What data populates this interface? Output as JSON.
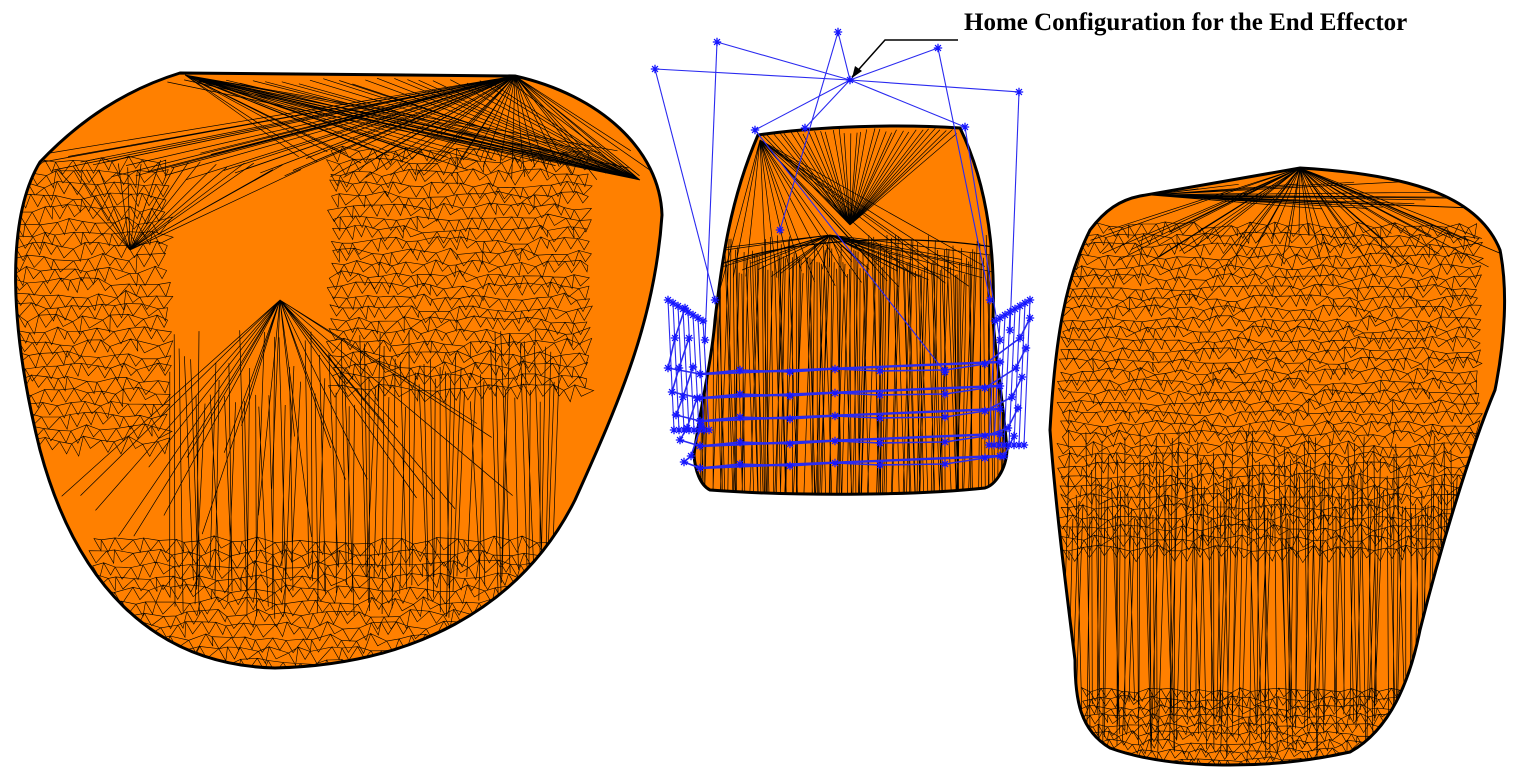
{
  "annotation": {
    "text": "Home Configuration for the End Effector"
  },
  "colors": {
    "mesh_fill": "#FF8000",
    "mesh_edge": "#000000",
    "path_line": "#2A2AF0",
    "path_marker": "#1515FF",
    "background": "#FFFFFF"
  },
  "objects": [
    {
      "name": "left-mesh-object",
      "description_icon": "triangulated-3d-mesh"
    },
    {
      "name": "center-mesh-object",
      "description_icon": "triangulated-3d-mesh"
    },
    {
      "name": "right-mesh-object",
      "description_icon": "triangulated-3d-mesh"
    }
  ],
  "end_effector_path": {
    "marker_symbol": "*",
    "layers": 5
  }
}
